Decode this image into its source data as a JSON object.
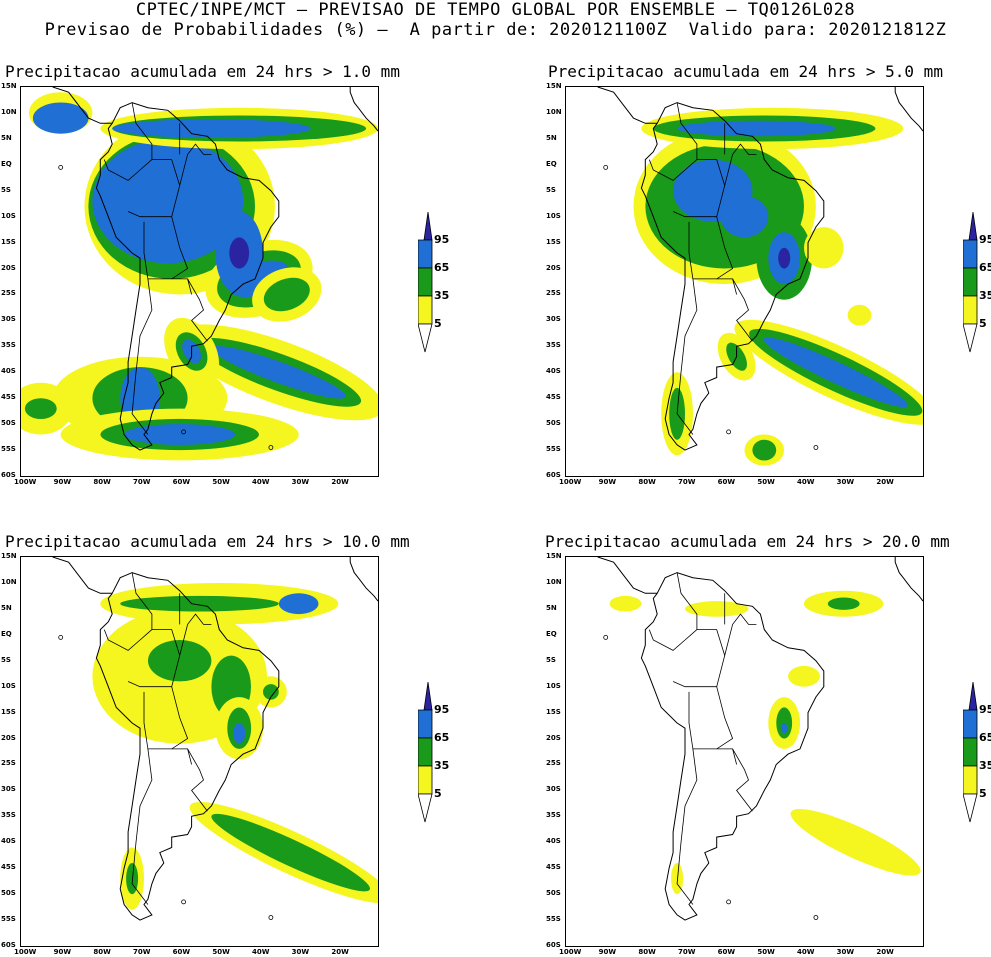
{
  "header": {
    "line1": "CPTEC/INPE/MCT – PREVISAO DE TEMPO GLOBAL POR ENSEMBLE – TQ0126L028",
    "line2": "Previsao de Probabilidades (%) –  A partir de: 2020121100Z  Valido para: 2020121812Z"
  },
  "panels": [
    {
      "title": "Precipitacao acumulada em 24 hrs > 1.0 mm",
      "coverage": "high"
    },
    {
      "title": "Precipitacao acumulada em 24 hrs > 5.0 mm",
      "coverage": "medium"
    },
    {
      "title": "Precipitacao acumulada em 24 hrs > 10.0 mm",
      "coverage": "low"
    },
    {
      "title": "Precipitacao acumulada em 24 hrs > 20.0 mm",
      "coverage": "minimal"
    }
  ],
  "lat_labels": [
    "15N",
    "10N",
    "5N",
    "EQ",
    "5S",
    "10S",
    "15S",
    "20S",
    "25S",
    "30S",
    "35S",
    "40S",
    "45S",
    "50S",
    "55S",
    "60S"
  ],
  "lon_labels": [
    "100W",
    "90W",
    "80W",
    "70W",
    "60W",
    "50W",
    "40W",
    "30W",
    "20W"
  ],
  "colorbar": {
    "labels": [
      "95",
      "65",
      "35",
      "5"
    ],
    "colors": {
      "c95": "#2b24a0",
      "c65": "#1f6fd4",
      "c35": "#1a9a1a",
      "c5": "#f5f520",
      "white": "#ffffff"
    }
  }
}
